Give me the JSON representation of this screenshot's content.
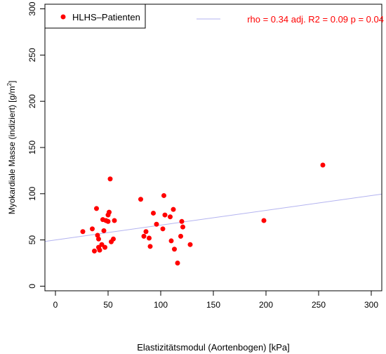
{
  "chart_data": {
    "type": "scatter",
    "xlabel": "Elastizitätsmodul (Aortenbogen) [kPa]",
    "ylabel_main": "Myokardiale Masse (indiziert) [g/m",
    "ylabel_sup": "2",
    "ylabel_end": "]",
    "xlim": [
      -10,
      310
    ],
    "ylim": [
      -5,
      305
    ],
    "xticks": [
      0,
      50,
      100,
      150,
      200,
      250,
      300
    ],
    "yticks": [
      0,
      50,
      100,
      150,
      200,
      250,
      300
    ],
    "legend": {
      "label": "HLHS–Patienten",
      "position": "top-left"
    },
    "stats_label": "rho = 0.34   adj. R2 =  0.09   p =  0.04",
    "colors": {
      "points": "#ff0000",
      "regression": "#b3b3f0",
      "stats": "#ff0000"
    },
    "regression": {
      "intercept": 50,
      "slope": 0.16
    },
    "series": [
      {
        "x": [
          26,
          35,
          37,
          39,
          40,
          41,
          41,
          42,
          44,
          45,
          46,
          47,
          48,
          50,
          50,
          51,
          52,
          53,
          55,
          56,
          81,
          84,
          86,
          89,
          90,
          93,
          96,
          102,
          103,
          104,
          109,
          110,
          112,
          113,
          116,
          119,
          120,
          121,
          128,
          198,
          254
        ],
        "y": [
          59,
          62,
          38,
          84,
          55,
          51,
          42,
          39,
          45,
          72,
          60,
          42,
          71,
          77,
          70,
          80,
          116,
          48,
          51,
          71,
          94,
          54,
          59,
          52,
          43,
          79,
          67,
          62,
          98,
          77,
          75,
          49,
          83,
          40,
          25,
          54,
          70,
          64,
          45,
          71,
          131
        ]
      }
    ]
  }
}
